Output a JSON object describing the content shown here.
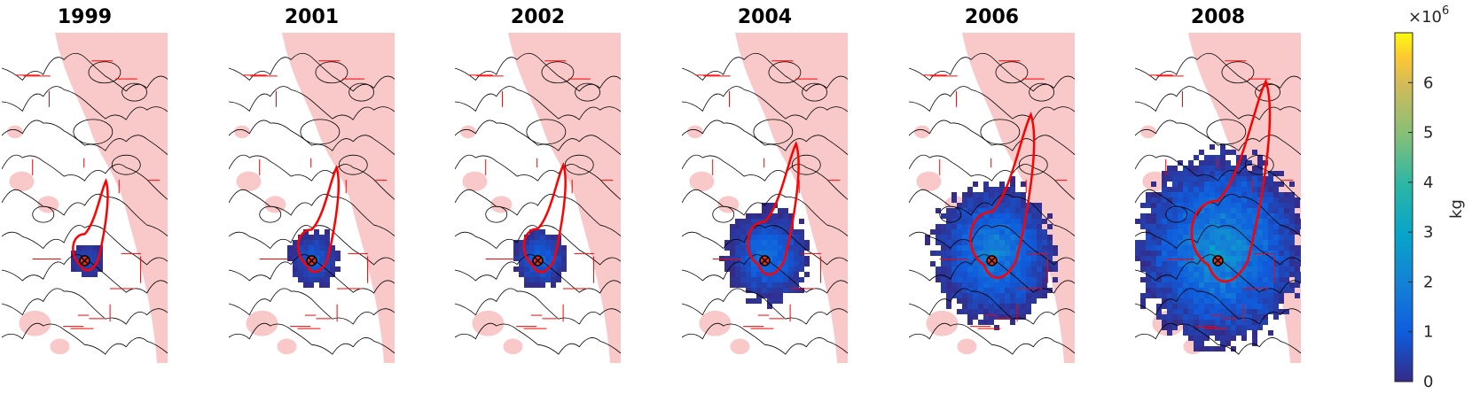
{
  "chart_data": {
    "type": "heatmap",
    "panels": [
      {
        "title": "1999",
        "plume_extent": 0.1,
        "plume_peak": 1.0
      },
      {
        "title": "2001",
        "plume_extent": 0.2,
        "plume_peak": 1.4
      },
      {
        "title": "2002",
        "plume_extent": 0.22,
        "plume_peak": 1.6
      },
      {
        "title": "2004",
        "plume_extent": 0.38,
        "plume_peak": 1.9
      },
      {
        "title": "2006",
        "plume_extent": 0.6,
        "plume_peak": 2.4
      },
      {
        "title": "2008",
        "plume_extent": 0.85,
        "plume_peak": 2.9
      }
    ],
    "colorbar": {
      "label": "kg",
      "multiplier": "×10",
      "exponent": "6",
      "ticks": [
        "0",
        "1",
        "2",
        "3",
        "4",
        "5",
        "6"
      ],
      "range": [
        0,
        7
      ],
      "colormap": "parula"
    },
    "legend": "none",
    "colors": {
      "outline": "#ff0000",
      "shading": "#f9c9c9",
      "contour": "#000000",
      "marker": "#000000",
      "low": "#352a87",
      "high": "#f9fb0e"
    }
  }
}
